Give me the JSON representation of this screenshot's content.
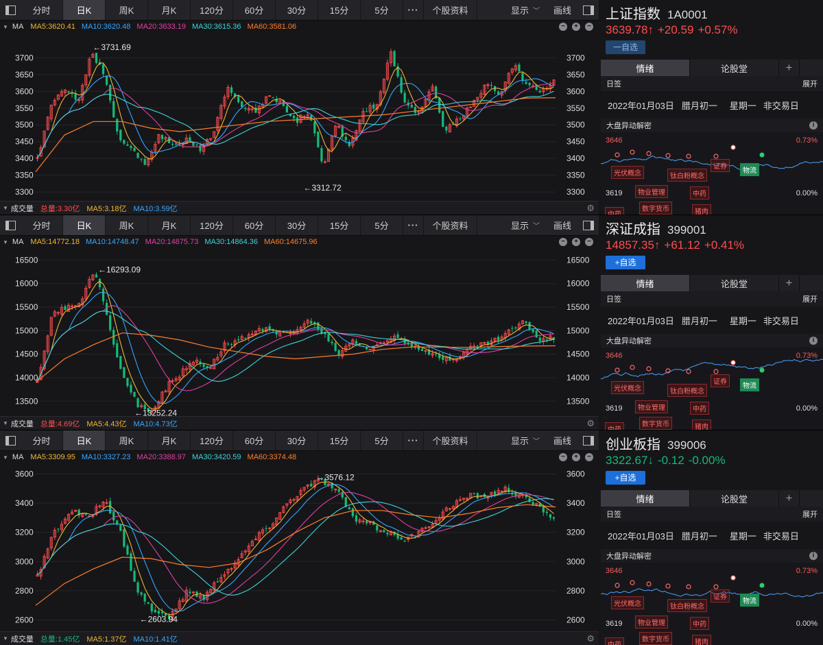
{
  "tabs": [
    "分时",
    "日K",
    "周K",
    "月K",
    "120分",
    "60分",
    "30分",
    "15分",
    "5分",
    "···",
    "个股资料"
  ],
  "active_tab": "日K",
  "toolbar": {
    "display_label": "显示",
    "draw_label": "画线"
  },
  "colors": {
    "up": "#ff4d4d",
    "down": "#17b978",
    "ma5": "#f2b632",
    "ma10": "#35a7ff",
    "ma20": "#e040a0",
    "ma30": "#3dd5d5",
    "ma60": "#ff7f2a"
  },
  "ma_label": "MA",
  "volume_label": "成交量",
  "side": {
    "tabs": [
      "情绪",
      "论股堂",
      "+"
    ],
    "rilian": "日签",
    "expand": "展开",
    "date": "2022年01月03日",
    "lunar": "腊月初一",
    "weekday": "星期一",
    "trade": "非交易日",
    "dapan_title": "大盘异动解密",
    "mini_hi": "3646",
    "mini_lo": "3619",
    "mini_pct_hi": "0.73%",
    "mini_pct_lo": "0.00%",
    "tags": [
      "光伏概念",
      "钛白粉概念",
      "证券",
      "物业管理",
      "中药",
      "中药",
      "数字货币",
      "猪肉",
      "物流"
    ]
  },
  "panels": [
    {
      "name": "上证指数",
      "code": "1A0001",
      "price": "3639.78↑",
      "change": "+20.59",
      "pct": "+0.57%",
      "direction": "up",
      "watch": "一自选",
      "watch_style": "remove",
      "ma": [
        "MA5:3620.41",
        "MA10:3620.48",
        "MA20:3633.19",
        "MA30:3615.36",
        "MA60:3581.06"
      ],
      "vol": [
        "总量:3.30亿",
        "MA5:3.18亿",
        "MA10:3.59亿"
      ],
      "chart_data": {
        "type": "candlestick",
        "yticks": [
          3300,
          3350,
          3400,
          3450,
          3500,
          3550,
          3600,
          3650,
          3700
        ],
        "ylim": [
          3290,
          3760
        ],
        "anchors": [
          3400,
          3560,
          3610,
          3570,
          3720,
          3640,
          3450,
          3430,
          3380,
          3470,
          3440,
          3460,
          3420,
          3480,
          3620,
          3560,
          3540,
          3590,
          3560,
          3510,
          3540,
          3370,
          3500,
          3440,
          3540,
          3560,
          3720,
          3560,
          3530,
          3620,
          3480,
          3520,
          3560,
          3620,
          3590,
          3680,
          3620,
          3600,
          3630
        ],
        "high_label": "←3731.69",
        "high_value": 3731.69,
        "low_label": "←3312.72",
        "low_value": 3312.72,
        "high_idx": 0.11,
        "low_idx": 0.515,
        "ma60": [
          3360,
          3470,
          3510,
          3510,
          3490,
          3480,
          3490,
          3500,
          3510,
          3515,
          3520,
          3525,
          3530,
          3540,
          3550,
          3560,
          3570,
          3580,
          3581
        ]
      }
    },
    {
      "name": "深证成指",
      "code": "399001",
      "price": "14857.35↑",
      "change": "+61.12",
      "pct": "+0.41%",
      "direction": "up",
      "watch": "+自选",
      "watch_style": "add",
      "ma": [
        "MA5:14772.18",
        "MA10:14748.47",
        "MA20:14875.73",
        "MA30:14864.36",
        "MA60:14675.96"
      ],
      "vol": [
        "总量:4.69亿",
        "MA5:4.43亿",
        "MA10:4.73亿"
      ],
      "chart_data": {
        "type": "candlestick",
        "yticks": [
          13500,
          14000,
          14500,
          15000,
          15500,
          16000,
          16500
        ],
        "ylim": [
          13300,
          16650
        ],
        "anchors": [
          13900,
          15300,
          15500,
          15600,
          16300,
          15100,
          14000,
          13400,
          13300,
          13800,
          14100,
          14400,
          14200,
          14700,
          14800,
          14900,
          15100,
          14900,
          15000,
          15200,
          14900,
          14500,
          14800,
          14600,
          14700,
          14900,
          14700,
          14600,
          14400,
          14400,
          14600,
          14700,
          14800,
          15000,
          15200,
          14800,
          14850
        ],
        "high_label": "←16293.09",
        "high_value": 16293.09,
        "low_label": "←13252.24",
        "low_value": 13252.24,
        "high_idx": 0.12,
        "low_idx": 0.19,
        "ma60": [
          13900,
          14400,
          14700,
          14950,
          14900,
          14800,
          14650,
          14550,
          14450,
          14400,
          14450,
          14500,
          14600,
          14650,
          14650,
          14640,
          14660,
          14670,
          14676
        ]
      }
    },
    {
      "name": "创业板指",
      "code": "399006",
      "price": "3322.67↓",
      "change": "-0.12",
      "pct": "-0.00%",
      "direction": "down",
      "watch": "+自选",
      "watch_style": "add",
      "ma": [
        "MA5:3309.95",
        "MA10:3327.23",
        "MA20:3388.97",
        "MA30:3420.59",
        "MA60:3374.48"
      ],
      "vol": [
        "总量:1.45亿",
        "MA5:1.37亿",
        "MA10:1.41亿"
      ],
      "chart_data": {
        "type": "candlestick",
        "yticks": [
          2600,
          2800,
          3000,
          3200,
          3400,
          3600
        ],
        "ylim": [
          2560,
          3640
        ],
        "anchors": [
          2900,
          3200,
          3350,
          3300,
          3420,
          3200,
          2800,
          2650,
          2620,
          2800,
          2750,
          2900,
          3000,
          3150,
          3250,
          3400,
          3500,
          3560,
          3480,
          3300,
          3250,
          3200,
          3150,
          3200,
          3300,
          3400,
          3450,
          3450,
          3500,
          3450,
          3380,
          3300
        ],
        "high_label": "←3576.12",
        "high_value": 3576.12,
        "low_label": "←2603.94",
        "low_value": 2603.94,
        "high_idx": 0.54,
        "low_idx": 0.2,
        "ma60": [
          2700,
          2850,
          2950,
          3030,
          3020,
          2980,
          2960,
          2990,
          3080,
          3200,
          3300,
          3350,
          3350,
          3320,
          3300,
          3330,
          3370,
          3390,
          3374
        ]
      }
    }
  ]
}
